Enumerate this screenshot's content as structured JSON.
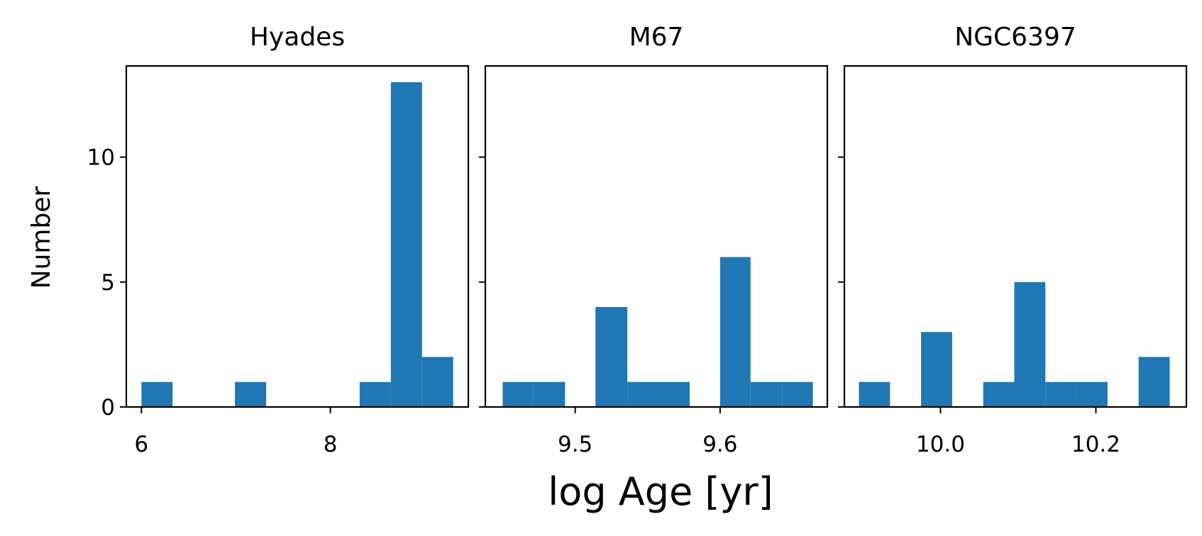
{
  "figure": {
    "xlabel": "log Age [yr]",
    "ylabel": "Number"
  },
  "chart_data": [
    {
      "type": "bar",
      "title": "Hyades",
      "xlabel": "log Age [yr]",
      "ylabel": "Number",
      "xlim": [
        5.84,
        9.46
      ],
      "ylim": [
        0,
        13.65
      ],
      "xticks": [
        6,
        8
      ],
      "xtick_labels": [
        "6",
        "8"
      ],
      "yticks": [
        0,
        5,
        10
      ],
      "ytick_labels": [
        "0",
        "5",
        "10"
      ],
      "color": "#1f77b4",
      "bins": [
        {
          "x0": 6.0,
          "x1": 6.33,
          "count": 1
        },
        {
          "x0": 6.99,
          "x1": 7.32,
          "count": 1
        },
        {
          "x0": 8.31,
          "x1": 8.64,
          "count": 1
        },
        {
          "x0": 8.64,
          "x1": 8.97,
          "count": 13
        },
        {
          "x0": 8.97,
          "x1": 9.3,
          "count": 2
        }
      ]
    },
    {
      "type": "bar",
      "title": "M67",
      "xlim": [
        9.438,
        9.674
      ],
      "ylim": [
        0,
        13.65
      ],
      "xticks": [
        9.5,
        9.6
      ],
      "xtick_labels": [
        "9.5",
        "9.6"
      ],
      "yticks": [
        0,
        5,
        10
      ],
      "color": "#1f77b4",
      "bins": [
        {
          "x0": 9.45,
          "x1": 9.471,
          "count": 1
        },
        {
          "x0": 9.471,
          "x1": 9.493,
          "count": 1
        },
        {
          "x0": 9.514,
          "x1": 9.536,
          "count": 4
        },
        {
          "x0": 9.536,
          "x1": 9.557,
          "count": 1
        },
        {
          "x0": 9.557,
          "x1": 9.579,
          "count": 1
        },
        {
          "x0": 9.6,
          "x1": 9.621,
          "count": 6
        },
        {
          "x0": 9.621,
          "x1": 9.643,
          "count": 1
        },
        {
          "x0": 9.643,
          "x1": 9.664,
          "count": 1
        }
      ]
    },
    {
      "type": "bar",
      "title": "NGC6397",
      "xlim": [
        9.8763,
        10.3165
      ],
      "ylim": [
        0,
        13.65
      ],
      "xticks": [
        10.0,
        10.2
      ],
      "xtick_labels": [
        "10.0",
        "10.2"
      ],
      "yticks": [
        0,
        5,
        10
      ],
      "color": "#1f77b4",
      "bins": [
        {
          "x0": 9.895,
          "x1": 9.935,
          "count": 1
        },
        {
          "x0": 9.975,
          "x1": 10.015,
          "count": 3
        },
        {
          "x0": 10.055,
          "x1": 10.095,
          "count": 1
        },
        {
          "x0": 10.095,
          "x1": 10.135,
          "count": 5
        },
        {
          "x0": 10.135,
          "x1": 10.175,
          "count": 1
        },
        {
          "x0": 10.175,
          "x1": 10.215,
          "count": 1
        },
        {
          "x0": 10.255,
          "x1": 10.295,
          "count": 2
        }
      ]
    }
  ]
}
